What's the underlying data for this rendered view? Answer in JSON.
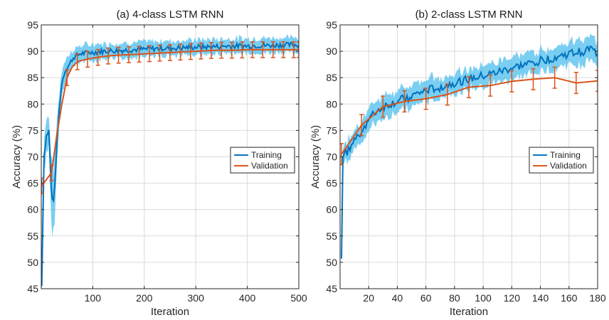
{
  "chart_data": [
    {
      "type": "line",
      "title": "(a) 4-class LSTM RNN",
      "xlabel": "Iteration",
      "ylabel": "Accuracy (%)",
      "xlim": [
        0,
        500
      ],
      "ylim": [
        45,
        95
      ],
      "xticks": [
        100,
        200,
        300,
        400,
        500
      ],
      "yticks": [
        45,
        50,
        55,
        60,
        65,
        70,
        75,
        80,
        85,
        90,
        95
      ],
      "grid": true,
      "legend_position": "center-right",
      "series": [
        {
          "name": "Training",
          "color": "#0072BD",
          "band_color": "#4DBEEE",
          "x": [
            1,
            5,
            10,
            15,
            20,
            25,
            30,
            35,
            40,
            45,
            50,
            55,
            60,
            65,
            70,
            75,
            80,
            90,
            100,
            120,
            140,
            160,
            180,
            200,
            220,
            240,
            260,
            280,
            300,
            320,
            340,
            360,
            380,
            400,
            420,
            440,
            460,
            480,
            500
          ],
          "values": [
            45.5,
            70,
            74,
            75,
            62,
            62,
            72,
            79,
            84,
            86,
            87,
            87.5,
            88.5,
            89,
            89.2,
            89.5,
            89.6,
            89.7,
            89.8,
            90,
            90.1,
            90.2,
            90.3,
            90.4,
            90.5,
            90.6,
            90.6,
            90.7,
            90.8,
            90.8,
            90.9,
            91,
            91,
            91,
            91.1,
            91.1,
            91.2,
            91.2,
            91.2
          ],
          "band": [
            1,
            3,
            3,
            3,
            8,
            6,
            5,
            3,
            2.5,
            2,
            2,
            1.8,
            1.6,
            1.5,
            1.5,
            1.5,
            1.5,
            1.5,
            1.5,
            1.4,
            1.4,
            1.4,
            1.4,
            1.4,
            1.4,
            1.4,
            1.4,
            1.4,
            1.4,
            1.4,
            1.4,
            1.4,
            1.4,
            1.4,
            1.4,
            1.4,
            1.4,
            1.4,
            1.4
          ]
        },
        {
          "name": "Validation",
          "color": "#D95319",
          "x": [
            1,
            20,
            30,
            40,
            50,
            60,
            70,
            80,
            90,
            100,
            120,
            140,
            160,
            180,
            200,
            220,
            240,
            260,
            280,
            300,
            320,
            340,
            360,
            380,
            400,
            420,
            440,
            460,
            480,
            500
          ],
          "values": [
            64.5,
            67,
            74,
            80,
            85,
            87,
            88,
            88.3,
            88.5,
            88.7,
            89,
            89.2,
            89.3,
            89.4,
            89.5,
            89.6,
            89.7,
            89.8,
            89.9,
            90,
            90.1,
            90.2,
            90.2,
            90.2,
            90.3,
            90.3,
            90.3,
            90.3,
            90.3,
            90.3
          ],
          "errorbar_x": [
            1,
            20,
            50,
            70,
            90,
            110,
            130,
            150,
            170,
            190,
            210,
            230,
            250,
            270,
            290,
            310,
            330,
            350,
            370,
            390,
            410,
            430,
            450,
            470,
            490,
            500
          ],
          "errorbar_halfwidth": 1.5
        }
      ]
    },
    {
      "type": "line",
      "title": "(b) 2-class LSTM RNN",
      "xlabel": "Iteration",
      "ylabel": "Accuracy (%)",
      "xlim": [
        0,
        180
      ],
      "ylim": [
        45,
        95
      ],
      "xticks": [
        20,
        40,
        60,
        80,
        100,
        120,
        140,
        160,
        180
      ],
      "yticks": [
        45,
        50,
        55,
        60,
        65,
        70,
        75,
        80,
        85,
        90,
        95
      ],
      "grid": true,
      "legend_position": "center-right",
      "series": [
        {
          "name": "Training",
          "color": "#0072BD",
          "band_color": "#4DBEEE",
          "x": [
            1,
            2,
            5,
            10,
            15,
            20,
            25,
            30,
            40,
            50,
            60,
            70,
            80,
            90,
            100,
            110,
            120,
            130,
            140,
            150,
            160,
            170,
            175,
            180
          ],
          "values": [
            51.5,
            70,
            71,
            73,
            75,
            77,
            78.5,
            79.5,
            80.5,
            81.5,
            82.5,
            83.2,
            84,
            84.7,
            85.3,
            86,
            86.8,
            87.5,
            88.2,
            88.8,
            89.5,
            90,
            90.5,
            89.5
          ],
          "band": [
            1.5,
            2,
            2,
            2,
            2,
            2,
            2,
            2,
            2,
            2,
            2,
            2,
            2,
            2,
            2,
            2,
            2,
            2,
            2,
            2,
            2.2,
            2.4,
            2.6,
            2.4
          ]
        },
        {
          "name": "Validation",
          "color": "#D95319",
          "x": [
            1,
            15,
            30,
            45,
            60,
            75,
            90,
            105,
            120,
            135,
            150,
            165,
            180
          ],
          "values": [
            70.5,
            76,
            79.5,
            80.5,
            81,
            81.8,
            83.2,
            83.5,
            84.3,
            84.7,
            85,
            84,
            84.4
          ],
          "errorbar_x": [
            1,
            15,
            30,
            45,
            60,
            75,
            90,
            105,
            120,
            135,
            150,
            165,
            180
          ],
          "errorbar_halfwidth": 2
        }
      ]
    }
  ]
}
